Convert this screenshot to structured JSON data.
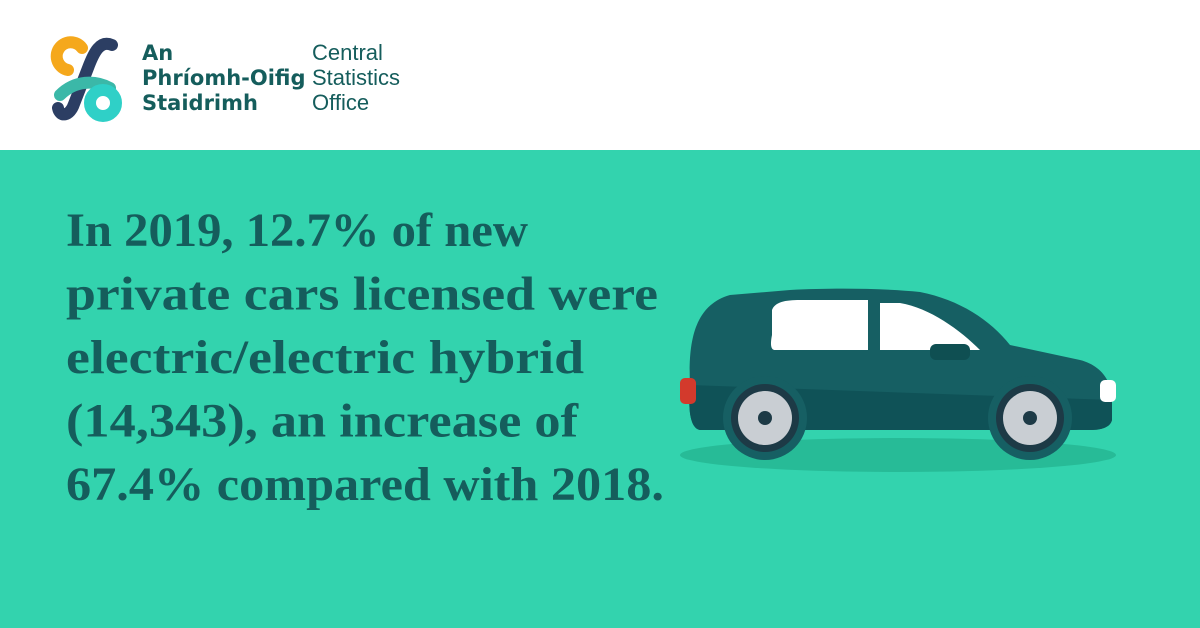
{
  "header": {
    "logo_irish": [
      "An",
      "Phríomh-Oifig",
      "Staidrimh"
    ],
    "logo_english": [
      "Central",
      "Statistics",
      "Office"
    ]
  },
  "body": {
    "lines": [
      "In 2019, 12.7% of new",
      "private cars licensed were",
      "electric/electric hybrid",
      "(14,343), an increase of",
      "67.4% compared with 2018."
    ]
  }
}
